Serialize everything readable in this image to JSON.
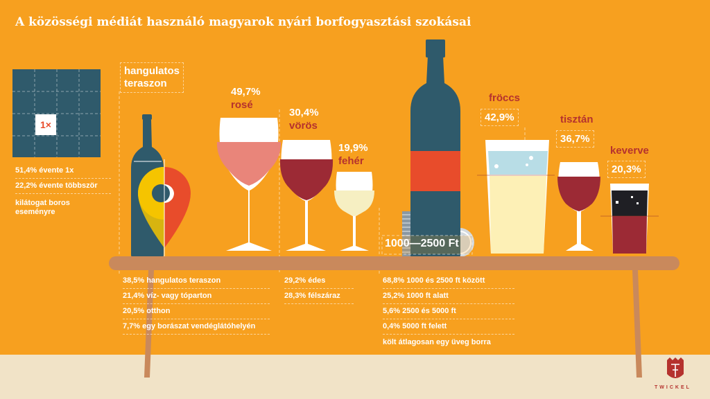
{
  "title": "A közösségi médiát használó magyarok nyári borfogyasztási szokásai",
  "events": {
    "frequency": "1×",
    "stats": [
      "51,4% évente 1x",
      "22,2% évente többször"
    ],
    "caption": "kilátogat boros eseményre"
  },
  "places": {
    "label_line1": "hangulatos",
    "label_line2": "teraszon",
    "stats": [
      "38,5% hangulatos teraszon",
      "21,4% víz- vagy tóparton",
      "20,5% otthon",
      "7,7% egy borászat vendéglátóhelyén"
    ]
  },
  "colors": {
    "rose": {
      "pct": "49,7%",
      "name": "rosé"
    },
    "red": {
      "pct": "30,4%",
      "name": "vörös"
    },
    "white": {
      "pct": "19,9%",
      "name": "fehér"
    }
  },
  "sweetness": {
    "stats": [
      "29,2% édes",
      "28,3% félszáraz"
    ]
  },
  "price": {
    "label": "1000—2500 Ft",
    "stats": [
      "68,8% 1000 és 2500 ft között",
      "25,2% 1000 ft alatt",
      "5,6% 2500 és 5000 ft",
      "0,4% 5000 ft felett"
    ],
    "caption": "költ átlagosan egy üveg borra"
  },
  "serving": {
    "froccs": {
      "name": "fröccs",
      "pct": "42,9%"
    },
    "pure": {
      "name": "tisztán",
      "pct": "36,7%"
    },
    "mixed": {
      "name": "keverve",
      "pct": "20,3%"
    }
  },
  "brand": "TWICKEL",
  "palette": {
    "background": "#f7a01f",
    "bottle": "#2f5a6b",
    "wine_red": "#9c2a35",
    "rose": "#e9857a",
    "label_red": "#e84c2b",
    "table": "#c9895c",
    "floor": "#f1e3c7"
  }
}
